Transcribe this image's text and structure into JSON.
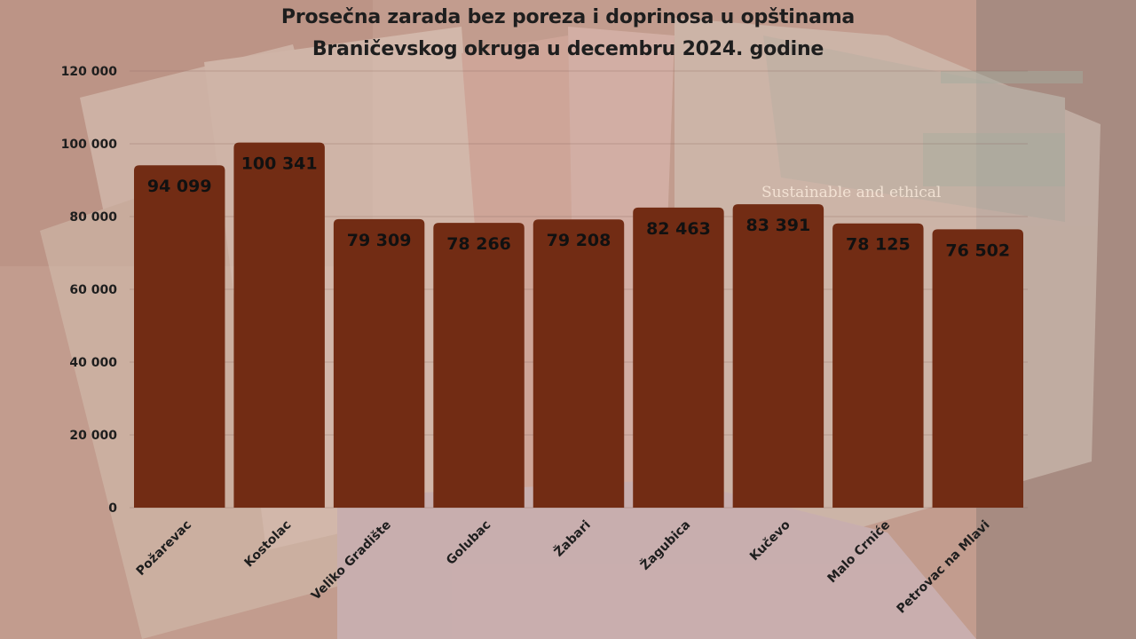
{
  "chart_data": {
    "type": "bar",
    "title_lines": [
      "Prosečna zarada bez poreza i doprinosa u opštinama",
      "Braničevskog okruga u decembru 2024. godine"
    ],
    "categories": [
      "Požarevac",
      "Kostolac",
      "Veliko Gradište",
      "Golubac",
      "Žabari",
      "Žagubica",
      "Kučevo",
      "Malo Crniće",
      "Petrovac na Mlavi"
    ],
    "values": [
      94099,
      100341,
      79309,
      78266,
      79208,
      82463,
      83391,
      78125,
      76502
    ],
    "value_labels": [
      "94 099",
      "100 341",
      "79 309",
      "78 266",
      "79 208",
      "82 463",
      "83 391",
      "78 125",
      "76 502"
    ],
    "ylim": [
      0,
      120000
    ],
    "yticks": [
      0,
      20000,
      40000,
      60000,
      80000,
      100000,
      120000
    ],
    "ytick_labels": [
      "0",
      "20 000",
      "40 000",
      "60 000",
      "80 000",
      "100 000",
      "120 000"
    ],
    "grid": true,
    "bar_color": "#722c14"
  },
  "watermark": "Sustainable and ethical"
}
